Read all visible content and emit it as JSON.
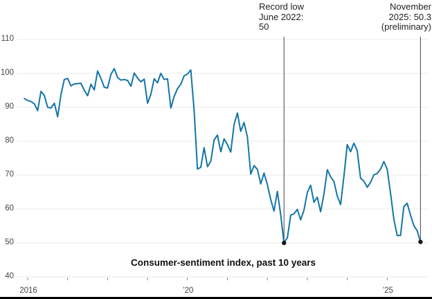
{
  "chart_data": {
    "type": "line",
    "title": "Consumer-sentiment index, past 10 years",
    "series": [
      {
        "name": "Consumer-sentiment index",
        "start_year": 2015,
        "start_month": 12,
        "frequency": "monthly",
        "values": [
          92.6,
          92.0,
          91.7,
          91.0,
          89.0,
          94.7,
          93.5,
          90.0,
          89.8,
          91.2,
          87.2,
          93.8,
          98.2,
          98.5,
          96.3,
          96.9,
          97.0,
          97.1,
          95.0,
          93.4,
          96.8,
          95.1,
          100.7,
          98.5,
          95.9,
          95.7,
          99.7,
          101.4,
          98.8,
          98.0,
          98.2,
          97.9,
          96.2,
          100.1,
          98.6,
          97.5,
          98.3,
          91.2,
          93.8,
          98.4,
          97.2,
          100.0,
          98.2,
          98.4,
          89.8,
          93.2,
          95.5,
          96.8,
          99.3,
          99.8,
          101.0,
          89.1,
          71.8,
          72.3,
          78.1,
          72.5,
          74.1,
          80.4,
          81.8,
          76.9,
          80.7,
          79.0,
          76.8,
          84.9,
          88.3,
          82.9,
          85.5,
          81.2,
          70.3,
          72.8,
          71.7,
          67.4,
          70.6,
          67.2,
          62.8,
          59.4,
          65.2,
          58.4,
          50.0,
          51.5,
          58.2,
          58.6,
          59.9,
          56.8,
          59.7,
          64.9,
          67.0,
          62.0,
          63.5,
          59.2,
          64.4,
          71.6,
          69.5,
          68.1,
          63.8,
          61.3,
          69.7,
          79.0,
          76.9,
          79.4,
          77.2,
          69.1,
          68.2,
          66.4,
          67.9,
          70.1,
          70.5,
          71.8,
          74.0,
          71.7,
          64.7,
          57.0,
          52.2,
          52.2,
          60.7,
          61.7,
          58.2,
          55.1,
          53.6,
          50.3
        ]
      }
    ],
    "x_axis": {
      "ticks": [
        {
          "year": 2016,
          "label": "2016"
        },
        {
          "year": 2017,
          "label": ""
        },
        {
          "year": 2018,
          "label": ""
        },
        {
          "year": 2019,
          "label": ""
        },
        {
          "year": 2020,
          "label": "’20"
        },
        {
          "year": 2021,
          "label": ""
        },
        {
          "year": 2022,
          "label": ""
        },
        {
          "year": 2023,
          "label": ""
        },
        {
          "year": 2024,
          "label": ""
        },
        {
          "year": 2025,
          "label": "’25"
        }
      ]
    },
    "y_axis": {
      "ticks": [
        110,
        100,
        90,
        80,
        70,
        60,
        50,
        40
      ],
      "range": [
        40,
        113
      ]
    },
    "grid": true,
    "legend": "none",
    "annotations": [
      {
        "lines": [
          "Record low",
          "June 2022:",
          "50"
        ],
        "align": "left",
        "year": 2022,
        "month": 6,
        "value": 50.0
      },
      {
        "lines": [
          "November",
          "2025: 50.3",
          "(preliminary)"
        ],
        "align": "right",
        "year": 2025,
        "month": 11,
        "value": 50.3
      }
    ],
    "colors": {
      "line": "#1374a6",
      "marker": "#1a1a1a",
      "annotation_line": "#444444",
      "grid": "#ebebeb",
      "tick": "#8a8a8a",
      "axis_text": "#454545",
      "annotation_text": "#222222",
      "bottom_rule": "#000000"
    }
  }
}
